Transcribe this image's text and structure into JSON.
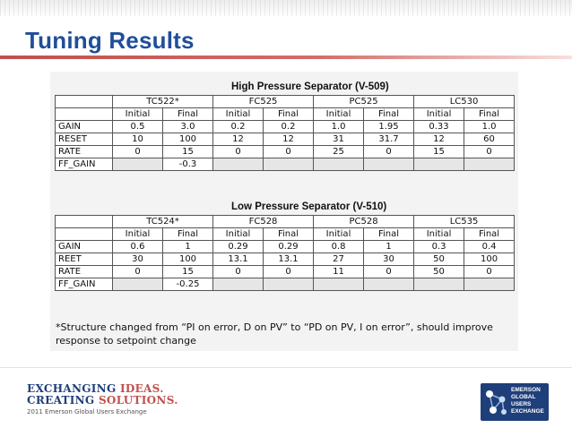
{
  "slide": {
    "title": "Tuning Results"
  },
  "tables": [
    {
      "title": "High Pressure Separator (V-509)",
      "controllers": [
        "TC522*",
        "FC525",
        "PC525",
        "LC530"
      ],
      "sub_headers": [
        "Initial",
        "Final",
        "Initial",
        "Final",
        "Initial",
        "Final",
        "Initial",
        "Final"
      ],
      "rows": [
        {
          "label": "GAIN",
          "values": [
            "0.5",
            "3.0",
            "0.2",
            "0.2",
            "1.0",
            "1.95",
            "0.33",
            "1.0"
          ]
        },
        {
          "label": "RESET",
          "values": [
            "10",
            "100",
            "12",
            "12",
            "31",
            "31.7",
            "12",
            "60"
          ]
        },
        {
          "label": "RATE",
          "values": [
            "0",
            "15",
            "0",
            "0",
            "25",
            "0",
            "15",
            "0"
          ]
        },
        {
          "label": "FF_GAIN",
          "values": [
            "",
            "-0.3",
            "",
            "",
            "",
            "",
            "",
            ""
          ]
        }
      ]
    },
    {
      "title": "Low Pressure Separator (V-510)",
      "controllers": [
        "TC524*",
        "FC528",
        "PC528",
        "LC535"
      ],
      "sub_headers": [
        "Initial",
        "Final",
        "Initial",
        "Final",
        "Initial",
        "Final",
        "Initial",
        "Final"
      ],
      "rows": [
        {
          "label": "GAIN",
          "values": [
            "0.6",
            "1",
            "0.29",
            "0.29",
            "0.8",
            "1",
            "0.3",
            "0.4"
          ]
        },
        {
          "label": "REET",
          "values": [
            "30",
            "100",
            "13.1",
            "13.1",
            "27",
            "30",
            "50",
            "100"
          ]
        },
        {
          "label": "RATE",
          "values": [
            "0",
            "15",
            "0",
            "0",
            "11",
            "0",
            "50",
            "0"
          ]
        },
        {
          "label": "FF_GAIN",
          "values": [
            "",
            "-0.25",
            "",
            "",
            "",
            "",
            "",
            ""
          ]
        }
      ]
    }
  ],
  "footnote": "*Structure changed from “PI on error, D on PV”  to “PD on PV, I on error”, should improve response to setpoint change",
  "footer": {
    "brand_line1_a": "EXCHANGING ",
    "brand_line1_b": "IDEAS.",
    "brand_line2_a": "CREATING ",
    "brand_line2_b": "SOLUTIONS.",
    "brand_sub": "2011 Emerson Global Users Exchange",
    "logo_lines": [
      "EMERSON",
      "GLOBAL",
      "USERS",
      "EXCHANGE"
    ],
    "colors": {
      "brand_blue": "#1f3f7a",
      "brand_red": "#c0504d",
      "title_blue": "#1f4e9a"
    }
  }
}
